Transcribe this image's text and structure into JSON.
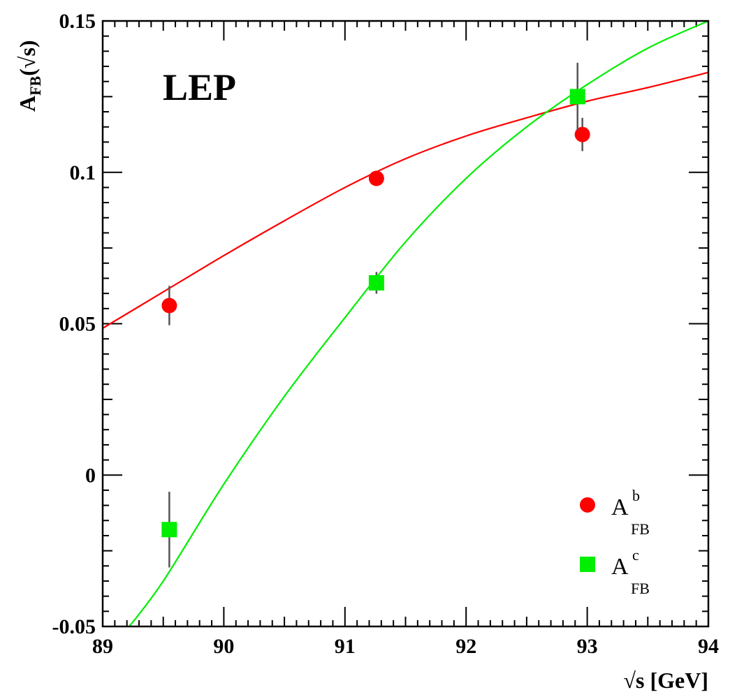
{
  "chart_data": {
    "type": "scatter",
    "experiment_label": "LEP",
    "xlabel": "√s [GeV]",
    "ylabel": {
      "main": "A",
      "sub": "FB",
      "suffix": "(√s)"
    },
    "xlim": [
      89,
      94
    ],
    "ylim": [
      -0.05,
      0.15
    ],
    "x_ticks": [
      89,
      90,
      91,
      92,
      93,
      94
    ],
    "x_tick_labels": [
      "89",
      "90",
      "91",
      "92",
      "93",
      "94"
    ],
    "y_ticks": [
      -0.05,
      0,
      0.05,
      0.1,
      0.15
    ],
    "y_tick_labels": [
      "-0.05",
      "0",
      "0.05",
      "0.1",
      "0.15"
    ],
    "grid": false,
    "legend": {
      "position": "bottom-right",
      "entries": [
        {
          "main": "A",
          "sup": "b",
          "sub": "FB",
          "marker": "circle",
          "color": "#ff0000"
        },
        {
          "main": "A",
          "sup": "c",
          "sub": "FB",
          "marker": "square",
          "color": "#00ee00"
        }
      ]
    },
    "series": [
      {
        "key": "b",
        "marker": "circle",
        "color": "#ff0000",
        "points": [
          {
            "x": 89.55,
            "y": 0.056,
            "err": 0.0065
          },
          {
            "x": 91.26,
            "y": 0.098,
            "err": 0.0017
          },
          {
            "x": 92.96,
            "y": 0.1125,
            "err": 0.0055
          }
        ]
      },
      {
        "key": "c",
        "marker": "square",
        "color": "#00ee00",
        "points": [
          {
            "x": 89.55,
            "y": -0.018,
            "err": 0.0125
          },
          {
            "x": 91.26,
            "y": 0.0635,
            "err": 0.0036
          },
          {
            "x": 92.92,
            "y": 0.125,
            "err": 0.0112
          }
        ]
      }
    ],
    "curves": [
      {
        "key": "b",
        "color": "#ff0000",
        "x": [
          89.0,
          89.5,
          90.0,
          90.5,
          91.0,
          91.5,
          92.0,
          92.5,
          93.0,
          93.5,
          94.0
        ],
        "y": [
          0.0485,
          0.0605,
          0.0725,
          0.084,
          0.095,
          0.1045,
          0.112,
          0.118,
          0.1235,
          0.128,
          0.133
        ]
      },
      {
        "key": "c",
        "color": "#00ee00",
        "x": [
          89.22,
          89.5,
          90.0,
          90.5,
          91.0,
          91.5,
          92.0,
          92.5,
          93.0,
          93.5,
          94.0
        ],
        "y": [
          -0.05,
          -0.035,
          -0.003,
          0.026,
          0.052,
          0.077,
          0.098,
          0.115,
          0.129,
          0.141,
          0.15
        ]
      }
    ]
  }
}
